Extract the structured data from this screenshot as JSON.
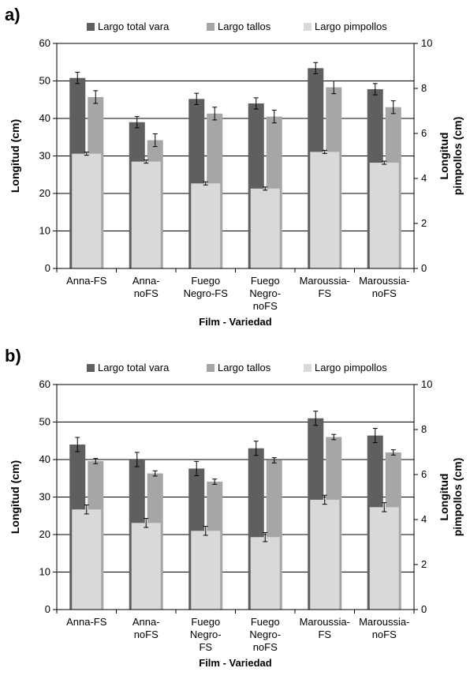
{
  "chart_data": [
    {
      "type": "bar",
      "panel_label": "a)",
      "categories": [
        [
          "Anna-FS"
        ],
        [
          "Anna-",
          "noFS"
        ],
        [
          "Fuego",
          "Negro-FS"
        ],
        [
          "Fuego",
          "Negro-",
          "noFS"
        ],
        [
          "Maroussia-",
          "FS"
        ],
        [
          "Maroussia-",
          "noFS"
        ]
      ],
      "xlabel": "Film - Variedad",
      "ylabel": "Longitud (cm)",
      "y2label": [
        "Longitud",
        "pimpollos (cm)"
      ],
      "ylim": [
        0,
        60
      ],
      "yticks": [
        0,
        10,
        20,
        30,
        40,
        50,
        60
      ],
      "y2lim": [
        0,
        10
      ],
      "y2ticks": [
        0,
        2,
        4,
        6,
        8,
        10
      ],
      "grid": true,
      "legend_position": "top",
      "series": [
        {
          "name": "Largo total vara",
          "color": "#5f5f5f",
          "axis": "left",
          "values": [
            50.8,
            39,
            45.2,
            44,
            53.4,
            47.8
          ],
          "errors": [
            1.5,
            1.5,
            1.5,
            1.5,
            1.5,
            1.5
          ]
        },
        {
          "name": "Largo tallos",
          "color": "#a6a6a6",
          "axis": "left",
          "values": [
            45.7,
            34.2,
            41.3,
            40.5,
            48.3,
            43
          ],
          "errors": [
            1.7,
            1.7,
            1.7,
            1.7,
            1.7,
            1.7
          ]
        },
        {
          "name": "Largo pimpollos",
          "color": "#d9d9d9",
          "axis": "right",
          "values": [
            5.1,
            4.75,
            3.78,
            3.55,
            5.18,
            4.7
          ],
          "errors": [
            0.07,
            0.07,
            0.07,
            0.07,
            0.07,
            0.07
          ]
        }
      ]
    },
    {
      "type": "bar",
      "panel_label": "b)",
      "categories": [
        [
          "Anna-FS"
        ],
        [
          "Anna-",
          "noFS"
        ],
        [
          "Fuego",
          "Negro-",
          "FS"
        ],
        [
          "Fuego",
          "Negro-",
          "noFS"
        ],
        [
          "Maroussia-",
          "FS"
        ],
        [
          "Maroussia-",
          "noFS"
        ]
      ],
      "xlabel": "Film - Variedad",
      "ylabel": "Longitud (cm)",
      "y2label": [
        "Longitud",
        "pimpollos (cm)"
      ],
      "ylim": [
        0,
        60
      ],
      "yticks": [
        0,
        10,
        20,
        30,
        40,
        50,
        60
      ],
      "y2lim": [
        0,
        10
      ],
      "y2ticks": [
        0,
        2,
        4,
        6,
        8,
        10
      ],
      "grid": true,
      "legend_position": "top",
      "series": [
        {
          "name": "Largo total vara",
          "color": "#5f5f5f",
          "axis": "left",
          "values": [
            44,
            40,
            37.6,
            43,
            51,
            46.4
          ],
          "errors": [
            1.9,
            1.9,
            1.9,
            1.9,
            1.9,
            1.9
          ]
        },
        {
          "name": "Largo tallos",
          "color": "#a6a6a6",
          "axis": "left",
          "values": [
            39.6,
            36.3,
            34.1,
            39.8,
            46,
            41.9
          ],
          "errors": [
            0.7,
            0.7,
            0.7,
            0.7,
            0.7,
            0.7
          ]
        },
        {
          "name": "Largo pimpollos",
          "color": "#d9d9d9",
          "axis": "right",
          "values": [
            4.45,
            3.85,
            3.5,
            3.22,
            4.88,
            4.55
          ],
          "errors": [
            0.2,
            0.2,
            0.2,
            0.2,
            0.2,
            0.2
          ]
        }
      ]
    }
  ]
}
